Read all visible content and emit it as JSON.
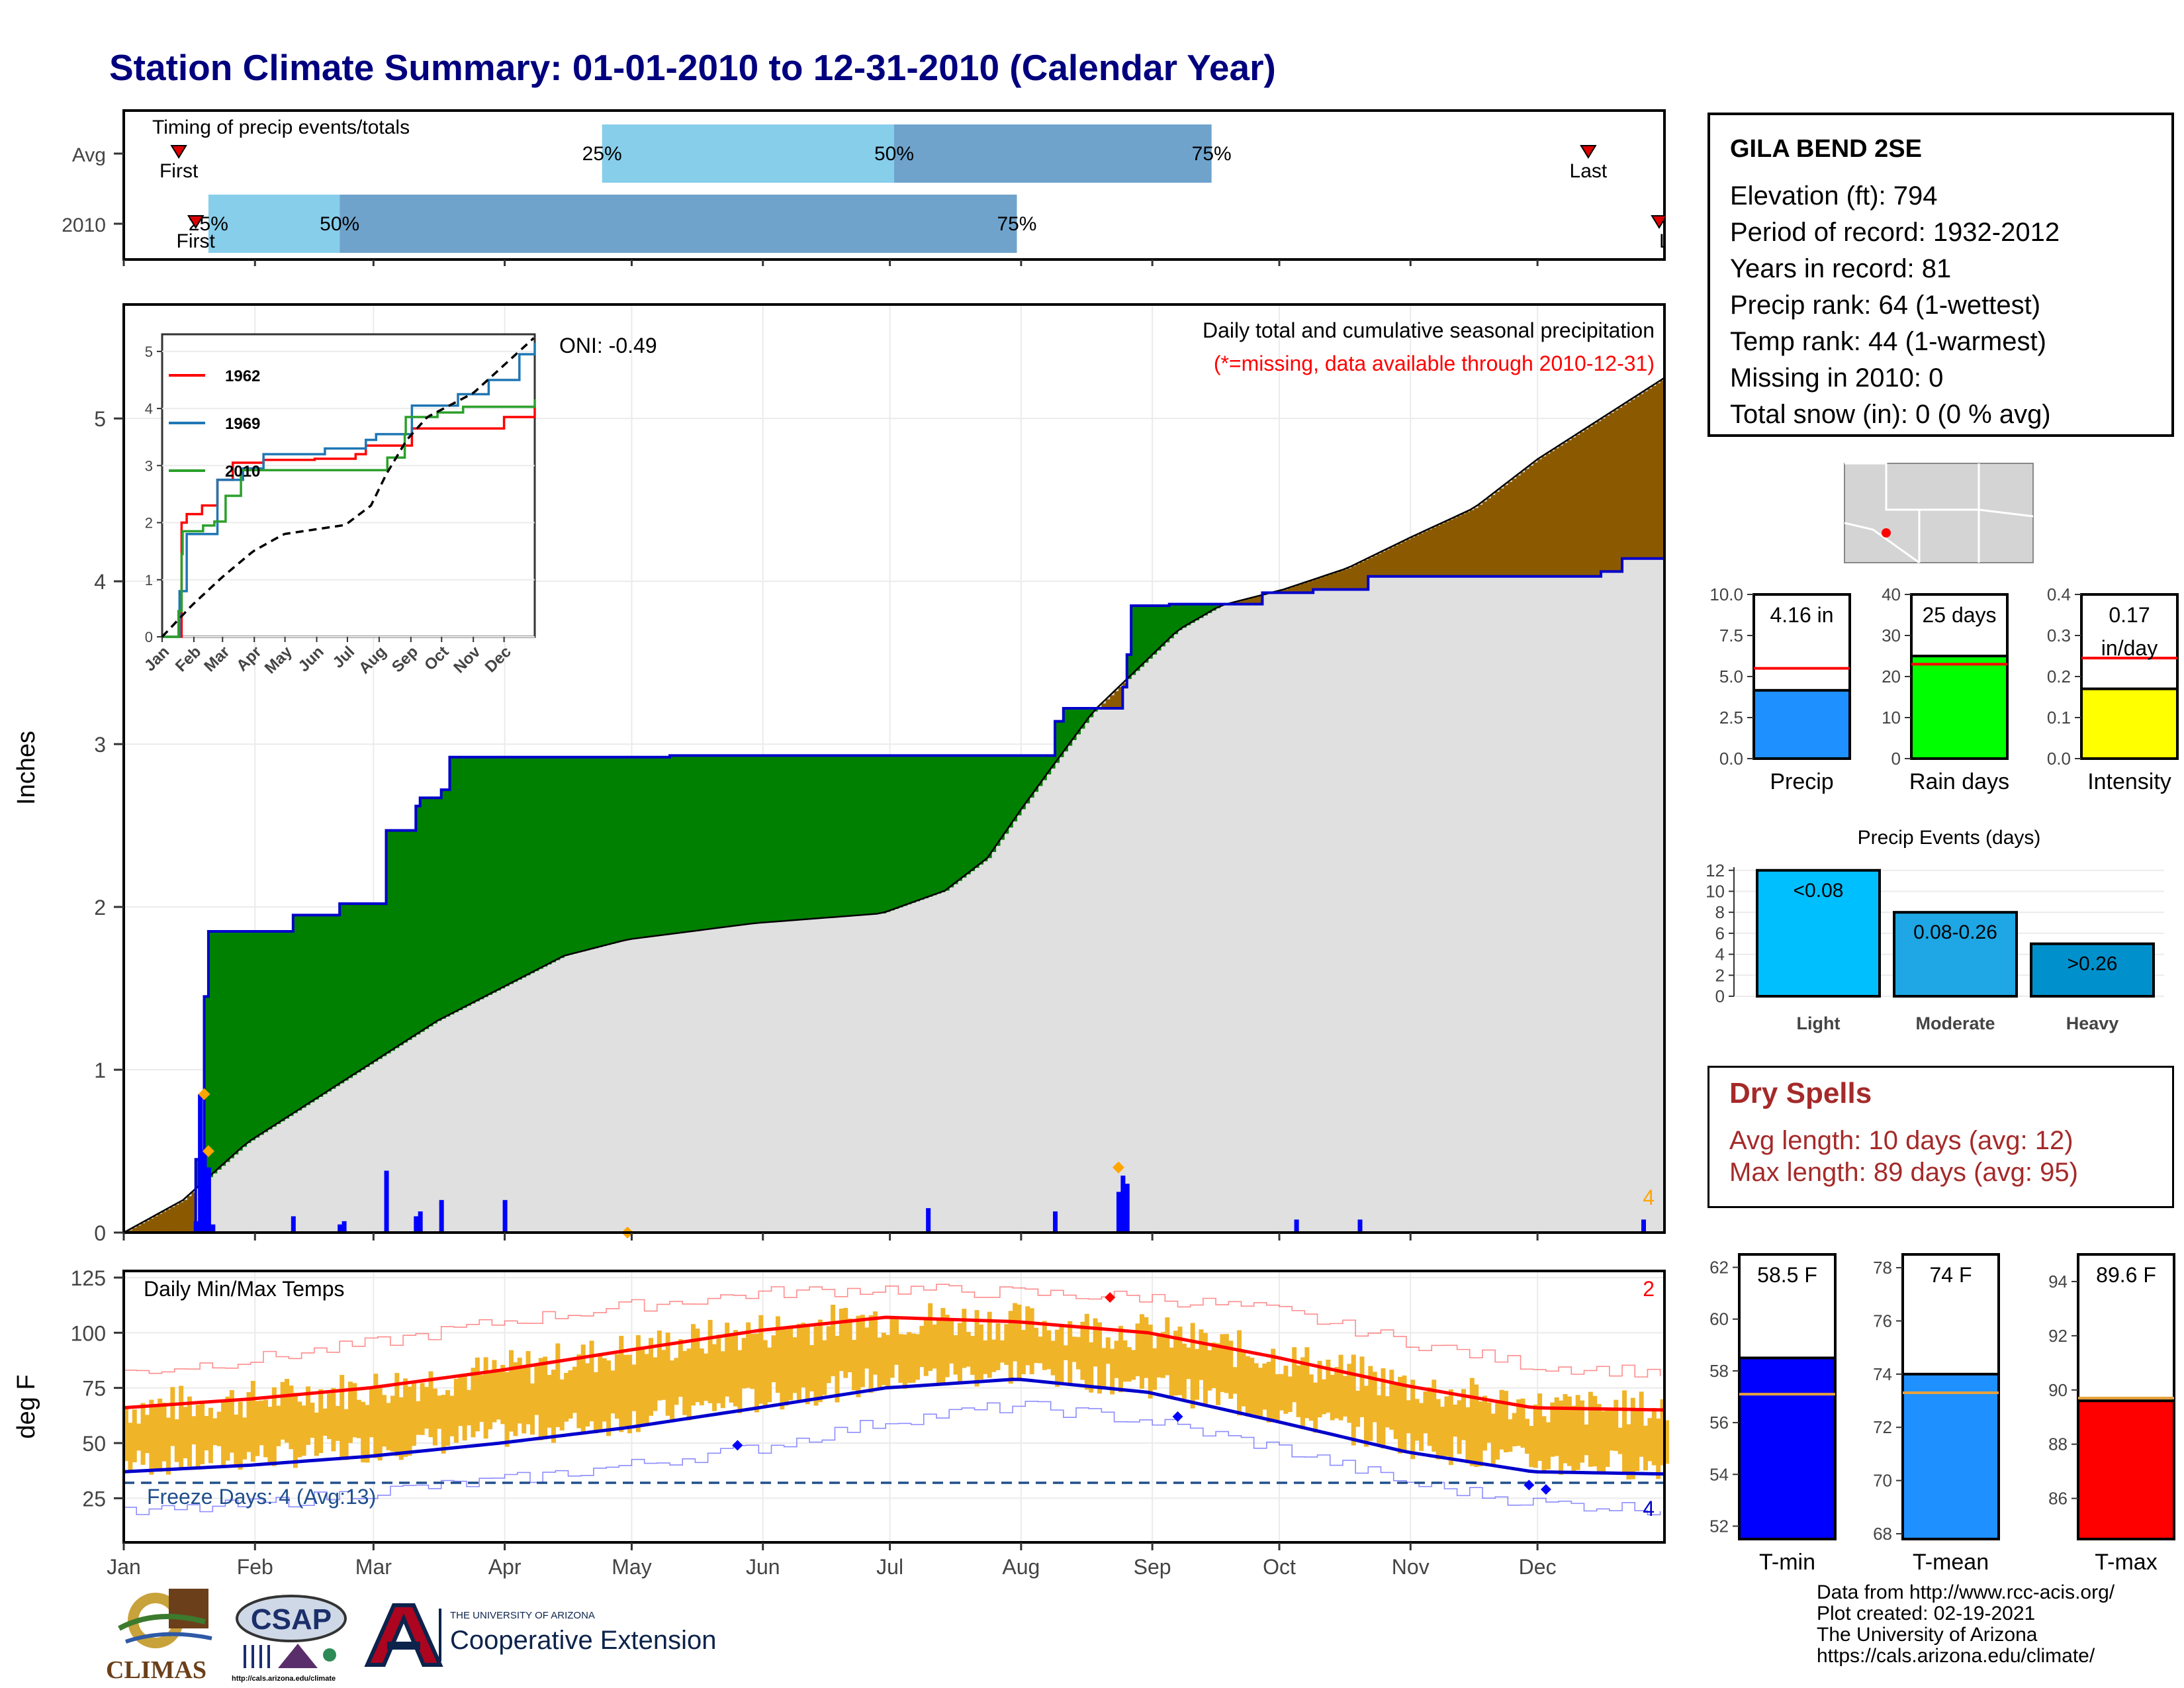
{
  "title": "Station Climate Summary: 01-01-2010 to 12-31-2010 (Calendar Year)",
  "timing": {
    "title": "Timing of precip events/totals",
    "rows": [
      {
        "label": "Avg",
        "first": "Jan 14",
        "p25": "Apr 24",
        "p50": "Jul 2",
        "p75": "Sep 15",
        "last": "Dec 13"
      },
      {
        "label": "2010",
        "first": "Jan 18",
        "p25": "Jan 21",
        "p50": "Feb 21",
        "p75": "Jul 31",
        "last": "Dec 31"
      }
    ],
    "labels": {
      "first": "First",
      "last": "Last",
      "p25": "25%",
      "p50": "50%",
      "p75": "75%"
    },
    "colors": {
      "p25_p50": "#87ceeb",
      "p50_p75": "#6fa3cc"
    }
  },
  "precip": {
    "ylabel": "Inches",
    "title": "Daily total and cumulative seasonal precipitation",
    "missing_note": "(*=missing, data available through 2010-12-31)",
    "oni": "ONI: -0.49",
    "corner_count": "4",
    "ylim": [
      0,
      5.7
    ],
    "yticks": [
      "0",
      "1",
      "2",
      "3",
      "4",
      "5"
    ],
    "colors": {
      "avg_fill": "#e0e0e0",
      "above": "#008000",
      "below": "#8b5a00",
      "line": "#0000cc",
      "daily": "#0000ff",
      "marker": "#ffa500"
    }
  },
  "inset": {
    "series_names": [
      "1962",
      "1969",
      "2010"
    ],
    "series_colors": [
      "#ff0000",
      "#1f77b4",
      "#2ca02c"
    ],
    "yticks": [
      "0",
      "1",
      "2",
      "3",
      "4",
      "5"
    ],
    "xticks": [
      "Jan",
      "Feb",
      "Mar",
      "Apr",
      "May",
      "Jun",
      "Jul",
      "Aug",
      "Sep",
      "Oct",
      "Nov",
      "Dec"
    ]
  },
  "temps": {
    "ylabel": "deg F",
    "title": "Daily Min/Max Temps",
    "freeze": "Freeze Days: 4 (Avg:13)",
    "corner_max": "2",
    "corner_min": "4",
    "yticks": [
      "25",
      "50",
      "75",
      "100",
      "125"
    ],
    "ylim": [
      5,
      128
    ],
    "freeze_line": 32,
    "colors": {
      "range_bar": "#f0b429",
      "avg_max": "#ff0000",
      "avg_min": "#0000cc"
    }
  },
  "months": [
    "Jan",
    "Feb",
    "Mar",
    "Apr",
    "May",
    "Jun",
    "Jul",
    "Aug",
    "Sep",
    "Oct",
    "Nov",
    "Dec"
  ],
  "station": {
    "name": "GILA BEND 2SE",
    "lines": [
      "Elevation (ft): 794",
      "Period of record: 1932-2012",
      "Years in record: 81",
      "Precip rank: 64 (1-wettest)",
      "Temp rank: 44 (1-warmest)",
      "Missing in 2010: 0",
      "Total snow (in): 0 (0 % avg)"
    ]
  },
  "bars_precip": [
    {
      "name": "Precip",
      "value": 4.16,
      "avg": 5.5,
      "label": "4.16 in",
      "yticks": [
        "0.0",
        "2.5",
        "5.0",
        "7.5",
        "10.0"
      ],
      "ymax": 10.0,
      "color": "#1e90ff"
    },
    {
      "name": "Rain days",
      "value": 25,
      "avg": 23,
      "label": "25 days",
      "yticks": [
        "0",
        "10",
        "20",
        "30",
        "40"
      ],
      "ymax": 40,
      "color": "#00ff00"
    },
    {
      "name": "Intensity",
      "value": 0.17,
      "avg": 0.245,
      "label": "0.17 in/day",
      "label_lines": [
        "0.17",
        "in/day"
      ],
      "yticks": [
        "0.0",
        "0.1",
        "0.2",
        "0.3",
        "0.4"
      ],
      "ymax": 0.4,
      "color": "#ffff00"
    }
  ],
  "events": {
    "title": "Precip Events (days)",
    "categories": [
      "Light",
      "Moderate",
      "Heavy"
    ],
    "bar_labels": [
      "<0.08",
      "0.08-0.26",
      ">0.26"
    ],
    "values": [
      12,
      8,
      5
    ],
    "yticks": [
      "0",
      "2",
      "4",
      "6",
      "8",
      "10",
      "12"
    ],
    "colors": [
      "#00bfff",
      "#1ea7e4",
      "#0091cc"
    ]
  },
  "dry_spells": {
    "title": "Dry Spells",
    "avg": "Avg length: 10 days (avg: 12)",
    "max": "Max length: 89 days (avg: 95)",
    "color": "#a52a2a"
  },
  "bars_temp": [
    {
      "name": "T-min",
      "value": 58.5,
      "avg": 57.1,
      "label": "58.5 F",
      "yticks": [
        "52",
        "54",
        "56",
        "58",
        "60",
        "62"
      ],
      "ymin": 51.5,
      "ymax": 62.5,
      "color": "#0000ff"
    },
    {
      "name": "T-mean",
      "value": 74.0,
      "avg": 73.3,
      "label": "74 F",
      "yticks": [
        "68",
        "70",
        "72",
        "74",
        "76",
        "78"
      ],
      "ymin": 67.8,
      "ymax": 78.5,
      "color": "#1e90ff"
    },
    {
      "name": "T-max",
      "value": 89.6,
      "avg": 89.7,
      "label": "89.6 F",
      "yticks": [
        "86",
        "88",
        "90",
        "92",
        "94"
      ],
      "ymin": 84.5,
      "ymax": 95,
      "color": "#ff0000"
    }
  ],
  "credits": [
    "Data from http://www.rcc-acis.org/",
    "Plot created: 02-19-2021",
    "The University of Arizona",
    "https://cals.arizona.edu/climate/"
  ],
  "logos": {
    "climas": "CLIMAS",
    "csap": "CSAP",
    "csap_url": "http://cals.arizona.edu/climate",
    "ua_small": "THE UNIVERSITY OF ARIZONA",
    "ua_big": "Cooperative Extension"
  },
  "chart_data": [
    {
      "type": "bar",
      "title": "Timing of precip events/totals",
      "categories": [
        "Avg",
        "2010"
      ],
      "series": [
        {
          "name": "First",
          "values": [
            "Jan 14",
            "Jan 18"
          ]
        },
        {
          "name": "25%",
          "values": [
            "Apr 24",
            "Jan 21"
          ]
        },
        {
          "name": "50%",
          "values": [
            "Jul 2",
            "Feb 21"
          ]
        },
        {
          "name": "75%",
          "values": [
            "Sep 15",
            "Jul 31"
          ]
        },
        {
          "name": "Last",
          "values": [
            "Dec 13",
            "Dec 31"
          ]
        }
      ]
    },
    {
      "type": "area",
      "title": "Daily total and cumulative seasonal precipitation",
      "ylabel": "Inches",
      "ylim": [
        0,
        5.7
      ],
      "x_unit": "day of year",
      "series": [
        {
          "name": "Cumulative 2010",
          "x": [
            1,
            17,
            18,
            19,
            20,
            21,
            22,
            41,
            52,
            63,
            70,
            71,
            76,
            78,
            91,
            130,
            190,
            221,
            223,
            224,
            236,
            237,
            238,
            239,
            247,
            248,
            249,
            270,
            282,
            295,
            300,
            350,
            355,
            365
          ],
          "y": [
            0,
            0,
            0.45,
            0.5,
            1.45,
            1.85,
            1.85,
            1.95,
            2.02,
            2.47,
            2.62,
            2.67,
            2.72,
            2.92,
            2.92,
            2.93,
            2.93,
            3.14,
            3.22,
            3.22,
            3.22,
            3.35,
            3.55,
            3.85,
            3.85,
            3.86,
            3.86,
            3.93,
            3.95,
            4.03,
            4.03,
            4.06,
            4.14,
            4.16
          ]
        },
        {
          "name": "Avg cumulative",
          "x": [
            1,
            15,
            30,
            45,
            60,
            75,
            90,
            105,
            120,
            135,
            150,
            165,
            180,
            195,
            205,
            213,
            220,
            230,
            240,
            250,
            260,
            275,
            290,
            305,
            320,
            335,
            350,
            365
          ],
          "y": [
            0,
            0.2,
            0.55,
            0.8,
            1.05,
            1.3,
            1.5,
            1.7,
            1.8,
            1.85,
            1.9,
            1.93,
            1.96,
            2.1,
            2.3,
            2.6,
            2.85,
            3.2,
            3.45,
            3.7,
            3.85,
            3.95,
            4.08,
            4.27,
            4.45,
            4.75,
            5.0,
            5.25
          ]
        },
        {
          "name": "Daily precip",
          "x": [
            18,
            19,
            20,
            21,
            22,
            41,
            52,
            53,
            63,
            70,
            71,
            76,
            91,
            191,
            221,
            236,
            237,
            238,
            278,
            293,
            360
          ],
          "y": [
            0.07,
            0.85,
            0.5,
            0.4,
            0.05,
            0.1,
            0.05,
            0.07,
            0.38,
            0.1,
            0.13,
            0.2,
            0.2,
            0.15,
            0.13,
            0.25,
            0.35,
            0.3,
            0.08,
            0.08,
            0.08
          ]
        }
      ]
    },
    {
      "type": "line",
      "title": "",
      "series": [
        {
          "name": "1962",
          "x": [
            1,
            20,
            25,
            40,
            55,
            70,
            100,
            150,
            190,
            200,
            245,
            335,
            365
          ],
          "y": [
            0,
            2.0,
            2.15,
            2.3,
            2.75,
            3.05,
            3.1,
            3.12,
            3.2,
            3.35,
            3.65,
            3.85,
            4.05
          ]
        },
        {
          "name": "1969",
          "x": [
            1,
            18,
            25,
            55,
            80,
            100,
            160,
            175,
            200,
            210,
            245,
            290,
            320,
            350,
            365
          ],
          "y": [
            0,
            0.8,
            1.8,
            2.75,
            2.95,
            3.2,
            3.3,
            3.3,
            3.45,
            3.55,
            4.05,
            4.25,
            4.5,
            4.95,
            5.15
          ]
        },
        {
          "name": "2010",
          "x": [
            1,
            17,
            20,
            21,
            41,
            52,
            63,
            78,
            91,
            221,
            238,
            239,
            270,
            295,
            365
          ],
          "y": [
            0,
            0.45,
            1.45,
            1.85,
            1.95,
            2.02,
            2.47,
            2.92,
            2.92,
            3.14,
            3.55,
            3.85,
            3.93,
            4.03,
            4.16
          ]
        },
        {
          "name": "Avg",
          "x": [
            1,
            30,
            60,
            90,
            120,
            180,
            205,
            220,
            240,
            260,
            305,
            365
          ],
          "y": [
            0,
            0.55,
            1.05,
            1.5,
            1.8,
            1.96,
            2.3,
            2.85,
            3.45,
            3.85,
            4.27,
            5.25
          ]
        }
      ]
    },
    {
      "type": "line",
      "title": "Daily Min/Max Temps",
      "ylabel": "deg F",
      "ylim": [
        5,
        128
      ],
      "series": [
        {
          "name": "Avg max",
          "x": [
            1,
            31,
            59,
            90,
            120,
            151,
            181,
            212,
            243,
            273,
            304,
            334,
            365
          ],
          "y": [
            66,
            70,
            75,
            83,
            92,
            101,
            107,
            105,
            100,
            89,
            76,
            66,
            65
          ]
        },
        {
          "name": "Avg min",
          "x": [
            1,
            31,
            59,
            90,
            120,
            151,
            181,
            212,
            243,
            273,
            304,
            334,
            365
          ],
          "y": [
            37,
            40,
            44,
            50,
            57,
            66,
            75,
            79,
            73,
            60,
            46,
            37,
            36
          ]
        },
        {
          "name": "Record max",
          "x": [
            1,
            31,
            59,
            90,
            120,
            151,
            181,
            212,
            243,
            273,
            304,
            334,
            365
          ],
          "y": [
            82,
            88,
            95,
            105,
            112,
            118,
            120,
            118,
            116,
            110,
            96,
            85,
            82
          ]
        },
        {
          "name": "Record min",
          "x": [
            1,
            31,
            59,
            90,
            120,
            151,
            181,
            212,
            243,
            273,
            304,
            334,
            365
          ],
          "y": [
            18,
            22,
            28,
            33,
            40,
            48,
            60,
            67,
            60,
            48,
            32,
            23,
            20
          ]
        }
      ]
    }
  ]
}
